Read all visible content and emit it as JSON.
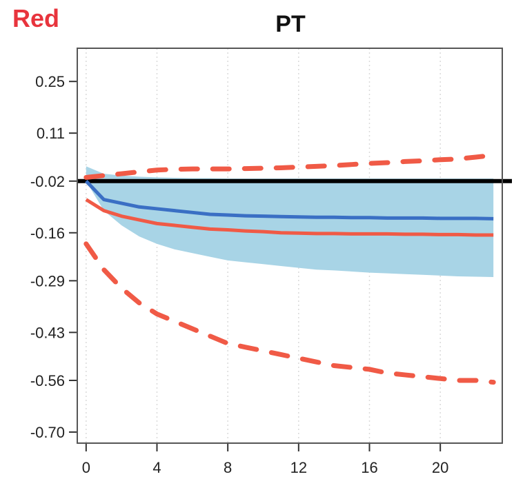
{
  "corner_label": "Red",
  "colors": {
    "blue_line": "#3a6fc4",
    "blue_band": "#a8d4e6",
    "red": "#f05a46",
    "zero_line": "#000000",
    "grid": "#d9d9d9",
    "frame": "#555555"
  },
  "chart_data": {
    "type": "line",
    "title": "PT",
    "xlabel": "",
    "ylabel": "",
    "xlim": [
      -0.5,
      23.5
    ],
    "ylim": [
      -0.73,
      0.34
    ],
    "x_ticks": [
      0,
      4,
      8,
      12,
      16,
      20
    ],
    "x_tick_labels": [
      "0",
      "4",
      "8",
      "12",
      "16",
      "20"
    ],
    "y_ticks": [
      0.25,
      0.11,
      -0.02,
      -0.16,
      -0.29,
      -0.43,
      -0.56,
      -0.7
    ],
    "y_tick_labels": [
      "0.25",
      "0.11",
      "-0.02",
      "-0.16",
      "-0.29",
      "-0.43",
      "-0.56",
      "-0.70"
    ],
    "grid": "vertical-dotted",
    "reference_line": -0.02,
    "x": [
      0,
      1,
      2,
      3,
      4,
      5,
      6,
      7,
      8,
      9,
      10,
      11,
      12,
      13,
      14,
      15,
      16,
      17,
      18,
      19,
      20,
      21,
      22,
      23
    ],
    "series": [
      {
        "style": "blue-solid",
        "values": [
          -0.02,
          -0.07,
          -0.08,
          -0.09,
          -0.095,
          -0.1,
          -0.105,
          -0.11,
          -0.112,
          -0.114,
          -0.115,
          -0.116,
          -0.117,
          -0.118,
          -0.118,
          -0.119,
          -0.119,
          -0.12,
          -0.12,
          -0.12,
          -0.121,
          -0.121,
          -0.121,
          -0.122
        ]
      },
      {
        "style": "blue-band-lower",
        "values": [
          -0.02,
          -0.1,
          -0.14,
          -0.17,
          -0.19,
          -0.205,
          -0.215,
          -0.225,
          -0.235,
          -0.24,
          -0.245,
          -0.25,
          -0.255,
          -0.26,
          -0.262,
          -0.265,
          -0.268,
          -0.27,
          -0.272,
          -0.274,
          -0.276,
          -0.278,
          -0.279,
          -0.28
        ]
      },
      {
        "style": "blue-band-upper",
        "values": [
          0.02,
          0.0,
          -0.005,
          -0.008,
          -0.01,
          -0.011,
          -0.012,
          -0.012,
          -0.013,
          -0.013,
          -0.013,
          -0.013,
          -0.013,
          -0.013,
          -0.013,
          -0.013,
          -0.013,
          -0.013,
          -0.013,
          -0.013,
          -0.013,
          -0.013,
          -0.013,
          -0.013
        ]
      },
      {
        "style": "red-solid",
        "values": [
          -0.07,
          -0.1,
          -0.115,
          -0.125,
          -0.135,
          -0.14,
          -0.145,
          -0.15,
          -0.152,
          -0.155,
          -0.157,
          -0.16,
          -0.161,
          -0.162,
          -0.162,
          -0.163,
          -0.163,
          -0.163,
          -0.164,
          -0.164,
          -0.165,
          -0.165,
          -0.166,
          -0.166
        ]
      },
      {
        "style": "red-dashed-lower",
        "values": [
          -0.19,
          -0.26,
          -0.31,
          -0.35,
          -0.38,
          -0.4,
          -0.42,
          -0.44,
          -0.46,
          -0.47,
          -0.48,
          -0.49,
          -0.5,
          -0.51,
          -0.52,
          -0.525,
          -0.53,
          -0.54,
          -0.545,
          -0.55,
          -0.555,
          -0.56,
          -0.56,
          -0.565
        ]
      },
      {
        "style": "red-dashed-upper",
        "values": [
          -0.01,
          -0.005,
          0.0,
          0.005,
          0.01,
          0.012,
          0.013,
          0.013,
          0.013,
          0.014,
          0.015,
          0.016,
          0.018,
          0.02,
          0.022,
          0.025,
          0.028,
          0.03,
          0.033,
          0.035,
          0.038,
          0.04,
          0.045,
          0.05
        ]
      }
    ]
  }
}
